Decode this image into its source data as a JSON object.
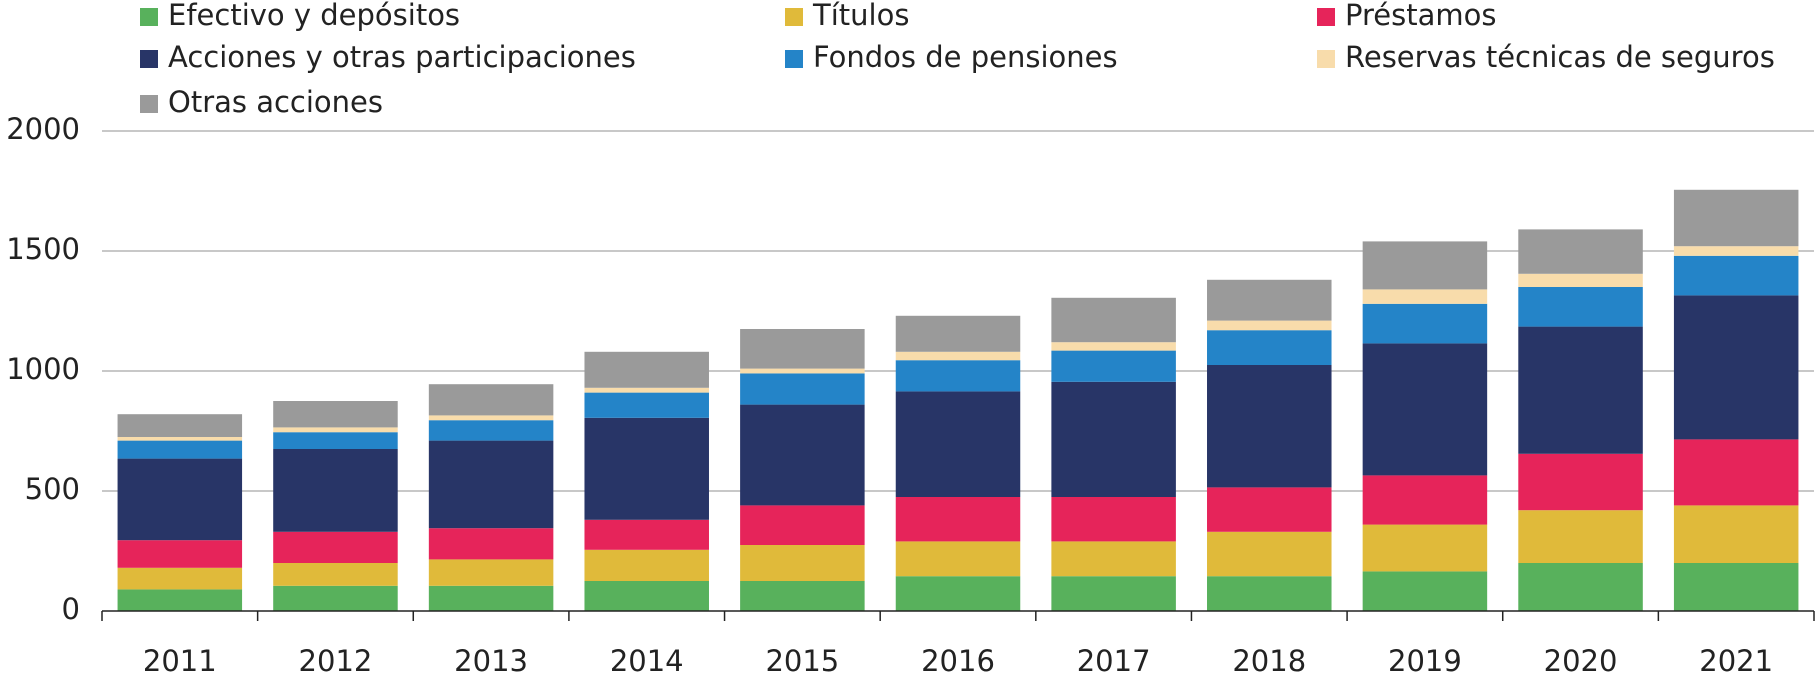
{
  "chart_data": {
    "type": "stacked-bar",
    "categories": [
      "2011",
      "2012",
      "2013",
      "2014",
      "2015",
      "2016",
      "2017",
      "2018",
      "2019",
      "2020",
      "2021"
    ],
    "series": [
      {
        "name": "Efectivo y depósitos",
        "color": "#58b15c",
        "values": [
          90,
          105,
          105,
          125,
          125,
          145,
          145,
          145,
          165,
          200,
          200
        ]
      },
      {
        "name": "Títulos",
        "color": "#e0ba3a",
        "values": [
          90,
          95,
          110,
          130,
          150,
          145,
          145,
          185,
          195,
          220,
          240
        ]
      },
      {
        "name": "Préstamos",
        "color": "#e6245a",
        "values": [
          115,
          130,
          130,
          125,
          165,
          185,
          185,
          185,
          205,
          235,
          275
        ]
      },
      {
        "name": "Acciones y otras participaciones",
        "color": "#283567",
        "values": [
          340,
          345,
          365,
          425,
          420,
          440,
          480,
          510,
          550,
          530,
          600
        ]
      },
      {
        "name": "Fondos de pensiones",
        "color": "#2484c8",
        "values": [
          75,
          70,
          85,
          105,
          130,
          130,
          130,
          145,
          165,
          165,
          165
        ]
      },
      {
        "name": "Reservas técnicas de seguros",
        "color": "#f8dcab",
        "values": [
          15,
          20,
          20,
          20,
          20,
          35,
          35,
          40,
          60,
          55,
          40
        ]
      },
      {
        "name": "Otras acciones",
        "color": "#9a9a9a",
        "values": [
          95,
          110,
          130,
          150,
          165,
          150,
          185,
          170,
          200,
          185,
          235
        ]
      }
    ],
    "ylim": [
      0,
      2000
    ],
    "yticks": [
      0,
      500,
      1000,
      1500,
      2000
    ],
    "grid": true
  }
}
